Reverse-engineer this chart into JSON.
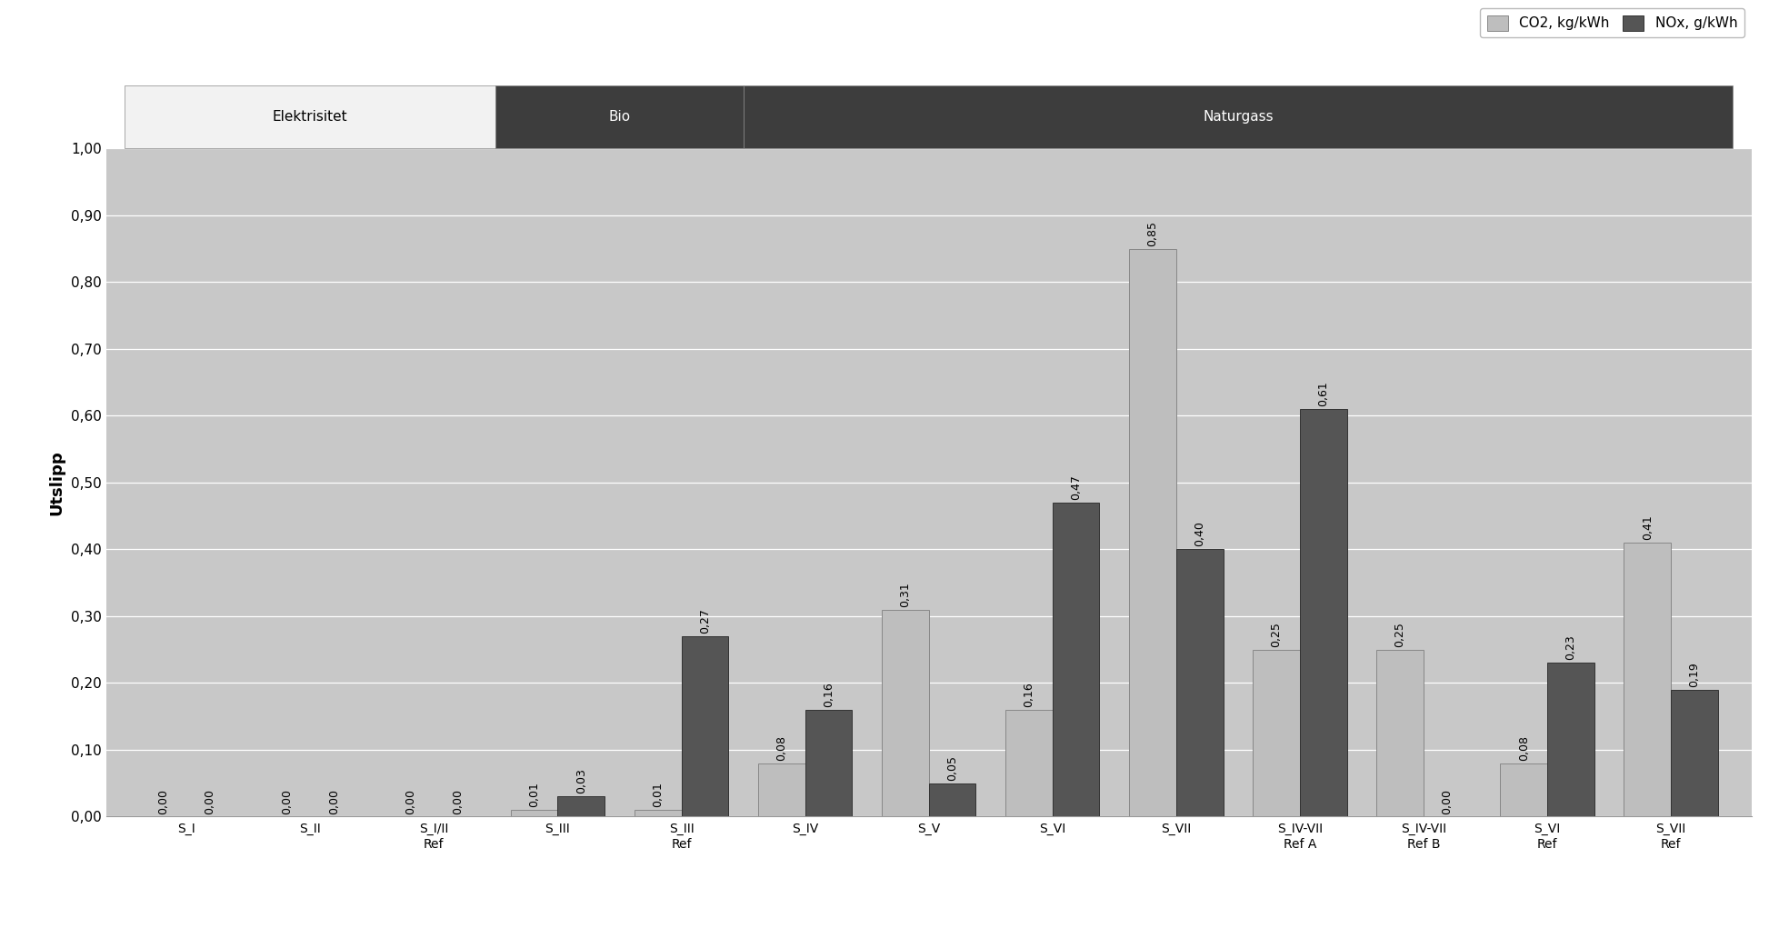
{
  "categories": [
    "S_I",
    "S_II",
    "S_I/II\nRef",
    "S_III",
    "S_III\nRef",
    "S_IV",
    "S_V",
    "S_VI",
    "S_VII",
    "S_IV-VII\nRef A",
    "S_IV-VII\nRef B",
    "S_VI\nRef",
    "S_VII\nRef"
  ],
  "co2_values": [
    0.0,
    0.0,
    0.0,
    0.01,
    0.01,
    0.08,
    0.31,
    0.16,
    0.85,
    0.25,
    0.25,
    0.08,
    0.41
  ],
  "nox_values": [
    0.0,
    0.0,
    0.0,
    0.03,
    0.27,
    0.16,
    0.05,
    0.47,
    0.4,
    0.61,
    0.0,
    0.23,
    0.19
  ],
  "co2_labels": [
    "0,00",
    "0,00",
    "0,00",
    "0,01",
    "0,01",
    "0,08",
    "0,31",
    "0,16",
    "0,85",
    "0,25",
    "0,25",
    "0,08",
    "0,41"
  ],
  "nox_labels": [
    "0,00",
    "0,00",
    "0,00",
    "0,03",
    "0,27",
    "0,16",
    "0,05",
    "0,47",
    "0,40",
    "0,61",
    "0,00",
    "0,23",
    "0,19"
  ],
  "co2_color": "#bebebe",
  "nox_color": "#555555",
  "co2_edge": "#888888",
  "nox_edge": "#333333",
  "ylabel": "Utslipp",
  "ylim": [
    0,
    1.0
  ],
  "yticks": [
    0.0,
    0.1,
    0.2,
    0.3,
    0.4,
    0.5,
    0.6,
    0.7,
    0.8,
    0.9,
    1.0
  ],
  "ytick_labels": [
    "0,00",
    "0,10",
    "0,20",
    "0,30",
    "0,40",
    "0,50",
    "0,60",
    "0,70",
    "0,80",
    "0,90",
    "1,00"
  ],
  "legend_co2": "CO2, kg/kWh",
  "legend_nox": "NOx, g/kWh",
  "groups": [
    {
      "label": "Elektrisitet",
      "start": 0,
      "end": 2,
      "bg": "#f2f2f2",
      "fg": "#000000"
    },
    {
      "label": "Bio",
      "start": 3,
      "end": 4,
      "bg": "#3d3d3d",
      "fg": "#ffffff"
    },
    {
      "label": "Naturgass",
      "start": 5,
      "end": 12,
      "bg": "#3d3d3d",
      "fg": "#ffffff"
    }
  ],
  "plot_bg": "#c8c8c8",
  "figure_bg": "#ffffff",
  "bar_width": 0.38,
  "grid_color": "#ffffff",
  "label_fontsize": 9,
  "tick_fontsize": 11,
  "ylabel_fontsize": 13
}
